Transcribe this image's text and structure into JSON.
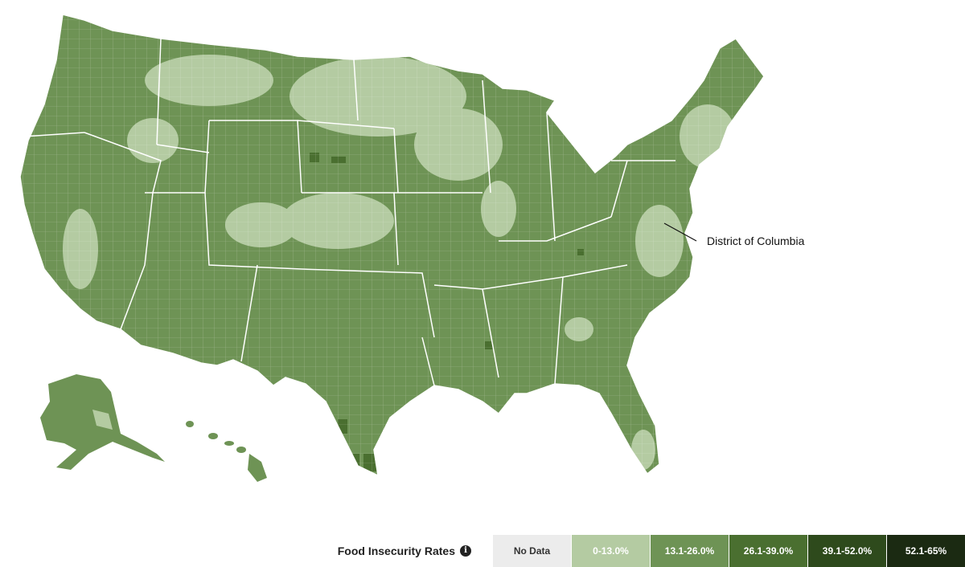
{
  "map": {
    "annotation": "District of Columbia",
    "colors": {
      "low": "#b4cba2",
      "mid": "#6e9355",
      "high": "#4a6f30",
      "veryhigh": "#2e4a1c",
      "border": "#ffffff"
    }
  },
  "legend": {
    "title": "Food Insecurity Rates",
    "info_icon": "info-icon",
    "items": [
      {
        "label": "No Data",
        "color": "#ececec",
        "text_color": "#333333"
      },
      {
        "label": "0-13.0%",
        "color": "#b4cba2",
        "text_color": "#ffffff"
      },
      {
        "label": "13.1-26.0%",
        "color": "#6e9355",
        "text_color": "#ffffff"
      },
      {
        "label": "26.1-39.0%",
        "color": "#4a6f30",
        "text_color": "#ffffff"
      },
      {
        "label": "39.1-52.0%",
        "color": "#2e4a1c",
        "text_color": "#ffffff"
      },
      {
        "label": "52.1-65%",
        "color": "#1b2a12",
        "text_color": "#ffffff"
      }
    ]
  }
}
